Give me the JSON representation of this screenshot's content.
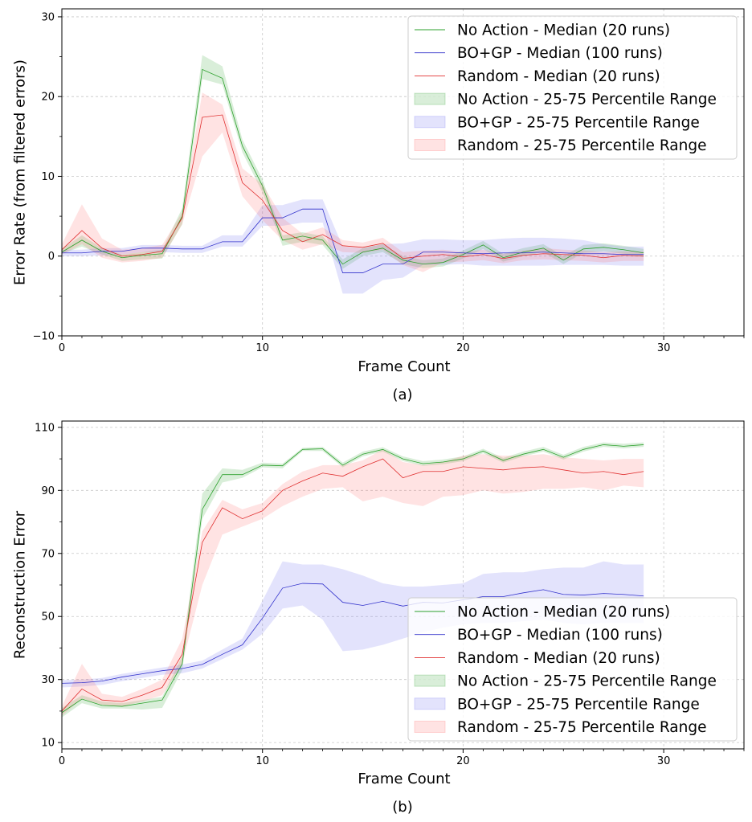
{
  "chart_data": [
    {
      "type": "line",
      "caption": "(a)",
      "xlabel": "Frame Count",
      "ylabel": "Error Rate (from filtered errors)",
      "xlim": [
        0,
        34
      ],
      "ylim": [
        -10,
        31
      ],
      "xticks": [
        0,
        10,
        20,
        30
      ],
      "yticks": [
        -10,
        0,
        10,
        20,
        30
      ],
      "grid": true,
      "legend_position": "top-right",
      "x": [
        0,
        1,
        2,
        3,
        4,
        5,
        6,
        7,
        8,
        9,
        10,
        11,
        12,
        13,
        14,
        15,
        16,
        17,
        18,
        19,
        20,
        21,
        22,
        23,
        24,
        25,
        26,
        27,
        28,
        29
      ],
      "series": [
        {
          "name": "No Action - Median (20 runs)",
          "color": "#2ca02c",
          "kind": "median",
          "values": [
            0.5,
            2.0,
            0.6,
            -0.2,
            0.1,
            0.3,
            5.0,
            23.4,
            22.3,
            13.8,
            8.8,
            2.0,
            2.5,
            2.0,
            -1.0,
            0.5,
            1.0,
            -0.5,
            -1.0,
            -0.8,
            0.2,
            1.4,
            -0.2,
            0.5,
            1.0,
            -0.5,
            0.9,
            1.1,
            0.8,
            0.4
          ]
        },
        {
          "name": "BO+GP - Median (100 runs)",
          "color": "#3333cc",
          "kind": "median",
          "values": [
            0.4,
            0.4,
            0.6,
            0.6,
            1.0,
            1.0,
            0.9,
            0.9,
            1.8,
            1.8,
            4.8,
            4.8,
            5.9,
            5.9,
            -2.1,
            -2.1,
            -1.0,
            -1.0,
            0.5,
            0.5,
            0.4,
            0.3,
            0.4,
            0.4,
            0.5,
            0.4,
            0.3,
            0.3,
            0.2,
            0.2
          ]
        },
        {
          "name": "Random - Median (20 runs)",
          "color": "#e03030",
          "kind": "median",
          "values": [
            0.8,
            3.2,
            1.0,
            0.0,
            0.2,
            0.6,
            4.8,
            17.4,
            17.7,
            9.2,
            7.0,
            3.2,
            1.8,
            2.7,
            1.3,
            1.1,
            1.6,
            -0.3,
            0.0,
            0.2,
            -0.1,
            0.2,
            -0.3,
            0.1,
            0.3,
            0.2,
            0.1,
            -0.2,
            0.1,
            0.0
          ]
        },
        {
          "name": "No Action - 25-75 Percentile Range",
          "color": "#2ca02c",
          "kind": "band",
          "lower": [
            0.3,
            1.2,
            0.2,
            -0.6,
            -0.4,
            -0.3,
            4.0,
            22.2,
            21.5,
            13.0,
            8.0,
            1.3,
            1.8,
            1.4,
            -1.6,
            0.0,
            0.5,
            -1.0,
            -1.5,
            -1.3,
            -0.3,
            0.9,
            -0.7,
            0.0,
            0.5,
            -1.0,
            0.4,
            0.6,
            0.3,
            -0.1
          ],
          "upper": [
            0.9,
            2.6,
            1.0,
            0.2,
            0.5,
            0.8,
            6.0,
            25.2,
            23.8,
            14.6,
            9.6,
            2.6,
            3.0,
            2.5,
            -0.4,
            1.0,
            1.5,
            0.0,
            -0.5,
            -0.3,
            0.7,
            1.9,
            0.3,
            1.0,
            1.5,
            0.0,
            1.4,
            1.6,
            1.3,
            0.9
          ]
        },
        {
          "name": "BO+GP - 25-75 Percentile Range",
          "color": "#6666ee",
          "kind": "band",
          "lower": [
            0.0,
            0.0,
            0.1,
            0.2,
            0.5,
            0.5,
            0.4,
            0.4,
            1.2,
            1.2,
            3.8,
            3.8,
            4.2,
            4.2,
            -4.7,
            -4.7,
            -3.0,
            -2.7,
            -1.1,
            -1.1,
            -1.0,
            -1.2,
            -1.2,
            -1.2,
            -1.2,
            -1.1,
            -1.1,
            -1.1,
            -1.2,
            -1.2
          ],
          "upper": [
            0.8,
            0.8,
            1.0,
            1.0,
            1.4,
            1.4,
            1.3,
            1.3,
            2.6,
            2.6,
            6.4,
            6.4,
            7.1,
            7.1,
            1.2,
            1.0,
            1.5,
            1.6,
            2.1,
            2.1,
            2.0,
            2.0,
            2.2,
            2.3,
            2.3,
            2.2,
            2.0,
            1.5,
            1.2,
            1.2
          ]
        },
        {
          "name": "Random - 25-75 Percentile Range",
          "color": "#ff6666",
          "kind": "band",
          "lower": [
            0.2,
            1.5,
            -0.2,
            -0.8,
            -0.6,
            -0.2,
            4.0,
            12.5,
            15.5,
            7.5,
            4.5,
            2.0,
            0.8,
            1.5,
            0.5,
            0.4,
            0.8,
            -1.1,
            -2.0,
            -0.8,
            -0.7,
            -0.5,
            -0.9,
            -0.5,
            -0.4,
            -0.5,
            -0.6,
            -0.8,
            -0.6,
            -0.6
          ],
          "upper": [
            1.5,
            6.5,
            2.2,
            0.8,
            1.0,
            1.4,
            5.5,
            20.5,
            19.0,
            11.0,
            9.0,
            4.8,
            2.8,
            3.6,
            2.0,
            1.7,
            2.3,
            0.5,
            0.7,
            0.8,
            0.5,
            0.8,
            0.3,
            0.7,
            1.0,
            0.8,
            0.7,
            0.5,
            0.6,
            0.6
          ]
        }
      ]
    },
    {
      "type": "line",
      "caption": "(b)",
      "xlabel": "Frame Count",
      "ylabel": "Reconstruction Error",
      "xlim": [
        0,
        34
      ],
      "ylim": [
        8,
        112
      ],
      "xticks": [
        0,
        10,
        20,
        30
      ],
      "yticks": [
        10,
        30,
        50,
        70,
        90,
        110
      ],
      "grid": true,
      "legend_position": "bottom-right",
      "x": [
        0,
        1,
        2,
        3,
        4,
        5,
        6,
        7,
        8,
        9,
        10,
        11,
        12,
        13,
        14,
        15,
        16,
        17,
        18,
        19,
        20,
        21,
        22,
        23,
        24,
        25,
        26,
        27,
        28,
        29
      ],
      "series": [
        {
          "name": "No Action - Median (20 runs)",
          "color": "#2ca02c",
          "kind": "median",
          "values": [
            19.5,
            23.8,
            21.8,
            21.5,
            22.5,
            23.5,
            35.0,
            84.0,
            95.0,
            95.0,
            98.0,
            97.8,
            103.0,
            103.2,
            98.0,
            101.5,
            103.0,
            100.0,
            98.5,
            99.0,
            100.0,
            102.5,
            99.5,
            101.5,
            103.0,
            100.5,
            103.0,
            104.5,
            104.0,
            104.5
          ]
        },
        {
          "name": "BO+GP - Median (100 runs)",
          "color": "#3333cc",
          "kind": "median",
          "values": [
            28.8,
            29.0,
            29.5,
            30.8,
            31.8,
            32.8,
            33.5,
            34.8,
            38.0,
            41.0,
            49.5,
            59.0,
            60.5,
            60.3,
            54.5,
            53.5,
            54.8,
            53.3,
            54.5,
            54.3,
            55.3,
            56.3,
            56.3,
            57.5,
            58.5,
            57.0,
            56.8,
            57.3,
            57.0,
            56.5
          ]
        },
        {
          "name": "Random - Median (20 runs)",
          "color": "#e03030",
          "kind": "median",
          "values": [
            20.0,
            27.0,
            23.5,
            23.0,
            25.0,
            27.5,
            38.0,
            73.5,
            84.5,
            81.0,
            83.5,
            90.0,
            93.0,
            95.5,
            94.5,
            97.5,
            100.0,
            94.0,
            96.0,
            96.0,
            97.5,
            97.0,
            96.5,
            97.2,
            97.5,
            96.5,
            95.5,
            96.0,
            95.0,
            96.0
          ]
        },
        {
          "name": "No Action - 25-75 Percentile Range",
          "color": "#2ca02c",
          "kind": "band",
          "lower": [
            18.0,
            22.5,
            20.8,
            20.8,
            20.5,
            21.0,
            33.0,
            81.0,
            92.5,
            94.0,
            97.3,
            97.0,
            102.5,
            102.5,
            97.3,
            100.8,
            102.3,
            99.3,
            97.8,
            98.3,
            99.3,
            101.8,
            98.8,
            100.8,
            102.3,
            99.8,
            102.3,
            103.8,
            103.3,
            103.8
          ],
          "upper": [
            21.0,
            25.0,
            23.0,
            22.5,
            23.5,
            24.5,
            37.5,
            89.0,
            97.0,
            96.5,
            98.8,
            98.5,
            103.5,
            103.8,
            98.8,
            102.3,
            103.7,
            100.8,
            99.3,
            99.8,
            100.8,
            103.2,
            100.3,
            102.3,
            103.8,
            101.3,
            103.8,
            105.2,
            104.8,
            105.2
          ]
        },
        {
          "name": "BO+GP - 25-75 Percentile Range",
          "color": "#6666ee",
          "kind": "band",
          "lower": [
            27.5,
            27.8,
            28.3,
            29.5,
            30.5,
            31.5,
            32.0,
            33.5,
            36.5,
            39.5,
            44.5,
            52.5,
            53.5,
            49.0,
            39.0,
            39.5,
            41.0,
            43.0,
            45.0,
            46.5,
            47.5,
            48.0,
            48.0,
            48.5,
            49.0,
            48.0,
            47.5,
            48.0,
            48.0,
            48.0
          ],
          "upper": [
            29.8,
            30.0,
            30.5,
            31.8,
            32.8,
            33.8,
            34.8,
            36.0,
            39.5,
            43.0,
            55.0,
            67.5,
            66.5,
            66.5,
            65.0,
            63.0,
            60.5,
            59.5,
            59.5,
            60.0,
            60.5,
            63.5,
            64.0,
            64.0,
            65.0,
            65.5,
            65.5,
            67.5,
            66.5,
            66.5
          ]
        },
        {
          "name": "Random - 25-75 Percentile Range",
          "color": "#ff6666",
          "kind": "band",
          "lower": [
            18.5,
            24.0,
            22.0,
            21.5,
            23.0,
            25.0,
            35.0,
            60.0,
            76.0,
            78.5,
            81.0,
            85.0,
            88.0,
            90.5,
            91.0,
            86.5,
            88.0,
            86.0,
            85.0,
            88.0,
            88.5,
            90.0,
            89.0,
            89.5,
            90.5,
            90.5,
            91.0,
            90.0,
            91.5,
            91.0
          ],
          "upper": [
            21.5,
            35.0,
            25.5,
            24.5,
            27.0,
            30.0,
            43.0,
            77.0,
            87.0,
            84.0,
            86.0,
            92.0,
            96.0,
            98.0,
            98.0,
            99.5,
            103.0,
            99.0,
            98.0,
            99.0,
            101.0,
            101.5,
            101.0,
            101.0,
            101.5,
            100.5,
            100.0,
            99.5,
            100.0,
            100.0
          ]
        }
      ]
    }
  ]
}
